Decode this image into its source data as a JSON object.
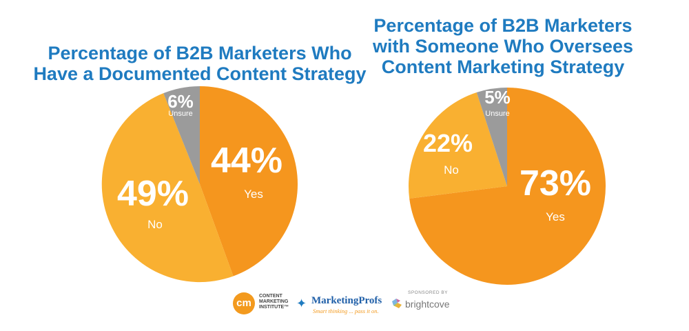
{
  "chart_data": [
    {
      "type": "pie",
      "title": [
        "Percentage of B2B Marketers Who",
        "Have a Documented Content Strategy"
      ],
      "slices": [
        {
          "label": "Yes",
          "value": 44,
          "display": "44%",
          "color": "#f5961e"
        },
        {
          "label": "No",
          "value": 49,
          "display": "49%",
          "color": "#f9b031"
        },
        {
          "label": "Unsure",
          "value": 6,
          "display": "6%",
          "color": "#9b9b9b"
        }
      ]
    },
    {
      "type": "pie",
      "title": [
        "Percentage of B2B Marketers",
        "with Someone Who Oversees",
        "Content Marketing Strategy"
      ],
      "slices": [
        {
          "label": "Yes",
          "value": 73,
          "display": "73%",
          "color": "#f5961e"
        },
        {
          "label": "No",
          "value": 22,
          "display": "22%",
          "color": "#f9b031"
        },
        {
          "label": "Unsure",
          "value": 5,
          "display": "5%",
          "color": "#9b9b9b"
        }
      ]
    }
  ],
  "logos": {
    "cmi": {
      "mark": "cm",
      "lines": [
        "CONTENT",
        "MARKETING",
        "INSTITUTE™"
      ]
    },
    "marketingprofs": {
      "name": "MarketingProfs",
      "tagline": "Smart thinking ... pass it on.",
      "icon": "bird-icon"
    },
    "brightcove": {
      "sponsored": "SPONSORED BY",
      "name": "brightcove",
      "icon": "brightcove-mark-icon"
    }
  }
}
